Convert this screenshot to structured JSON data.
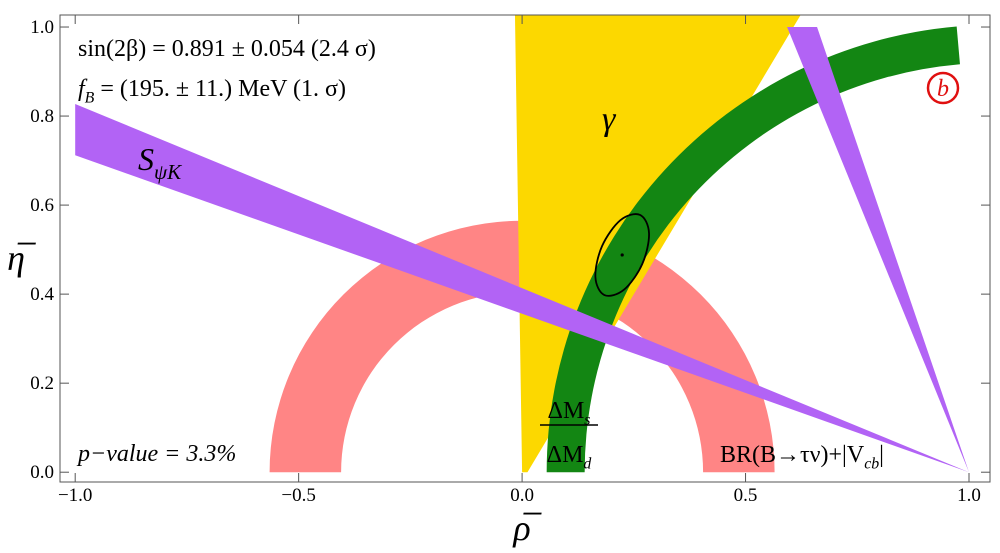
{
  "chart_data": {
    "type": "region",
    "xlabel": "ρ̅",
    "ylabel": "η̅",
    "xlim": [
      -1.034,
      1.047
    ],
    "ylim": [
      -0.022,
      1.027
    ],
    "xticks": [
      {
        "value": -1,
        "label": "−1.0"
      },
      {
        "value": -0.5,
        "label": "−0.5"
      },
      {
        "value": 0,
        "label": "0.0"
      },
      0.5,
      {
        "value": 1,
        "label": "1.0"
      }
    ],
    "yticks": [
      {
        "value": 0,
        "label": "0.0"
      },
      0.2,
      0.4,
      0.6,
      0.8,
      {
        "value": 1,
        "label": "1.0"
      }
    ],
    "series": [
      {
        "kind": "ring",
        "color": "#ff8585",
        "center": [
          0,
          0
        ],
        "radii": [
          0.405,
          0.565
        ],
        "angles": [
          0,
          180
        ]
      },
      {
        "kind": "polygon",
        "color": "#fcd800",
        "x": [
          0.0,
          -0.016,
          0.625,
          0.012
        ],
        "y": [
          0.0,
          1.03,
          1.03,
          0.0
        ]
      },
      {
        "kind": "ring",
        "color": "#138613",
        "center": [
          1.06,
          0
        ],
        "radii": [
          0.92,
          1.005
        ],
        "angles": [
          95,
          180
        ]
      },
      {
        "kind": "polygon",
        "color": "#b263f5",
        "x": [
          -1.0,
          1.0,
          -1.0
        ],
        "y": [
          0.827,
          0.0,
          0.712
        ]
      },
      {
        "kind": "polygon",
        "color": "#b263f5",
        "x": [
          1.0,
          0.593,
          0.66
        ],
        "y": [
          0.0,
          1.0,
          1.0
        ]
      },
      {
        "kind": "contour",
        "color": "#000000",
        "x": [
          0.264,
          0.284,
          0.269,
          0.228,
          0.184,
          0.164,
          0.179,
          0.22
        ],
        "y": [
          0.578,
          0.537,
          0.468,
          0.41,
          0.398,
          0.439,
          0.508,
          0.566
        ]
      }
    ],
    "fit_point": {
      "x": 0.224,
      "y": 0.488
    },
    "annotations": {
      "sin2beta": "sin(2β) = 0.891 ± 0.054 (2.4 σ)",
      "fB": {
        "main": "f",
        "sub": "B",
        "rest": " = (195. ± 11.) MeV (1. σ)"
      },
      "pvalue": "p−value =  3.3%",
      "panel": "b",
      "spsik": {
        "main": "S",
        "sub": "ψK"
      },
      "gamma": "γ",
      "dm_num": {
        "main": "ΔM",
        "sub": "s"
      },
      "dm_den": {
        "main": "ΔM",
        "sub": "d"
      },
      "br": {
        "main": "BR(B→τν)+|V",
        "sub": "cb",
        "rest": "|"
      }
    }
  }
}
